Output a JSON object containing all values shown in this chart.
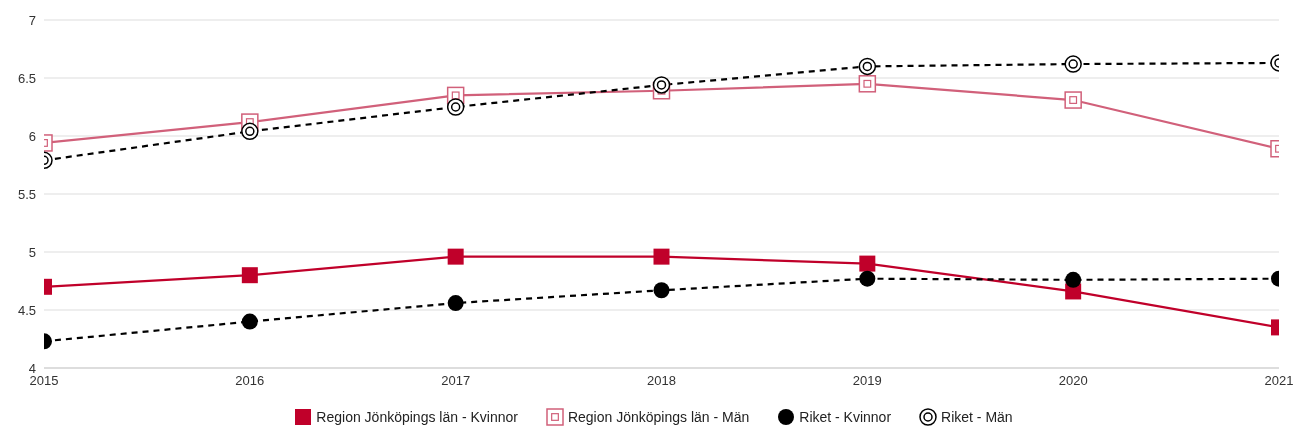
{
  "chart_data": {
    "type": "line",
    "x": [
      2015,
      2016,
      2017,
      2018,
      2019,
      2020,
      2021
    ],
    "xlim": [
      2015,
      2021
    ],
    "xticks": [
      2015,
      2016,
      2017,
      2018,
      2019,
      2020,
      2021
    ],
    "ylim": [
      4,
      7
    ],
    "yticks": [
      4,
      4.5,
      5,
      5.5,
      6,
      6.5,
      7
    ],
    "grid": "y",
    "legend": "bottom",
    "series": [
      {
        "name": "Region Jönköpings län - Kvinnor",
        "color": "#c0002a",
        "marker": "square",
        "line_style": "solid",
        "values": [
          4.7,
          4.8,
          4.96,
          4.96,
          4.9,
          4.66,
          4.35
        ]
      },
      {
        "name": "Region Jönköpings län - Män",
        "color": "#d1607a",
        "marker": "square",
        "line_style": "solid",
        "values": [
          5.94,
          6.12,
          6.35,
          6.39,
          6.45,
          6.31,
          5.89
        ]
      },
      {
        "name": "Riket - Kvinnor",
        "color": "#000000",
        "marker": "circle",
        "line_style": "dashed",
        "values": [
          4.23,
          4.4,
          4.56,
          4.67,
          4.77,
          4.76,
          4.77
        ]
      },
      {
        "name": "Riket - Män",
        "color": "#000000",
        "marker": "circle",
        "line_style": "dashed",
        "values": [
          5.79,
          6.04,
          6.25,
          6.44,
          6.6,
          6.62,
          6.63
        ]
      }
    ]
  }
}
